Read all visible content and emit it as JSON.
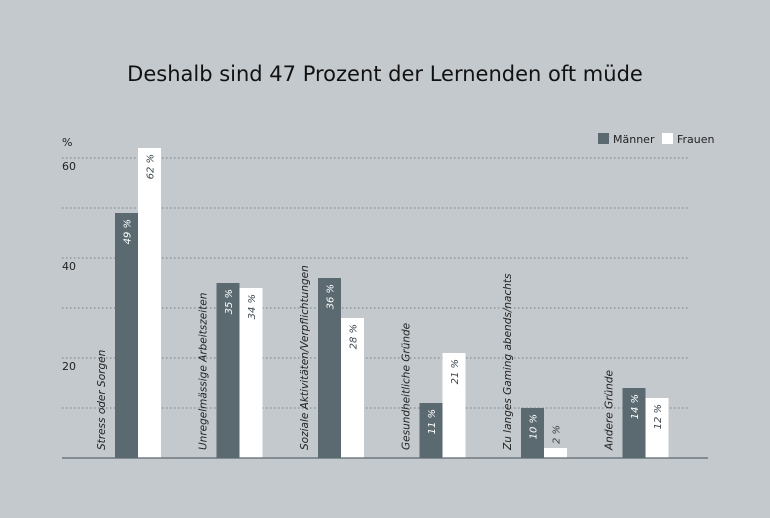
{
  "chart_data": {
    "type": "bar",
    "title": "Deshalb sind 47 Prozent der Lernenden oft müde",
    "ylabel": "%",
    "ylim": [
      0,
      60
    ],
    "yticks": [
      20,
      40,
      60
    ],
    "grid_step": 10,
    "grid": true,
    "legend_position": "top-right",
    "categories": [
      "Stress oder Sorgen",
      "Unregelmässige Arbeitszeiten",
      "Soziale Aktivitäten/Verpflichtungen",
      "Gesundheitliche Gründe",
      "Zu langes Gaming abends/nachts",
      "Andere Gründe"
    ],
    "series": [
      {
        "name": "Männer",
        "color": "#5a6a70",
        "values": [
          49,
          35,
          36,
          11,
          10,
          14
        ],
        "labels": [
          "49 %",
          "35 %",
          "36 %",
          "11 %",
          "10 %",
          "14 %"
        ]
      },
      {
        "name": "Frauen",
        "color": "#ffffff",
        "values": [
          62,
          34,
          28,
          21,
          2,
          12
        ],
        "labels": [
          "62 %",
          "34 %",
          "28 %",
          "21 %",
          "2 %",
          "12 %"
        ]
      }
    ]
  }
}
